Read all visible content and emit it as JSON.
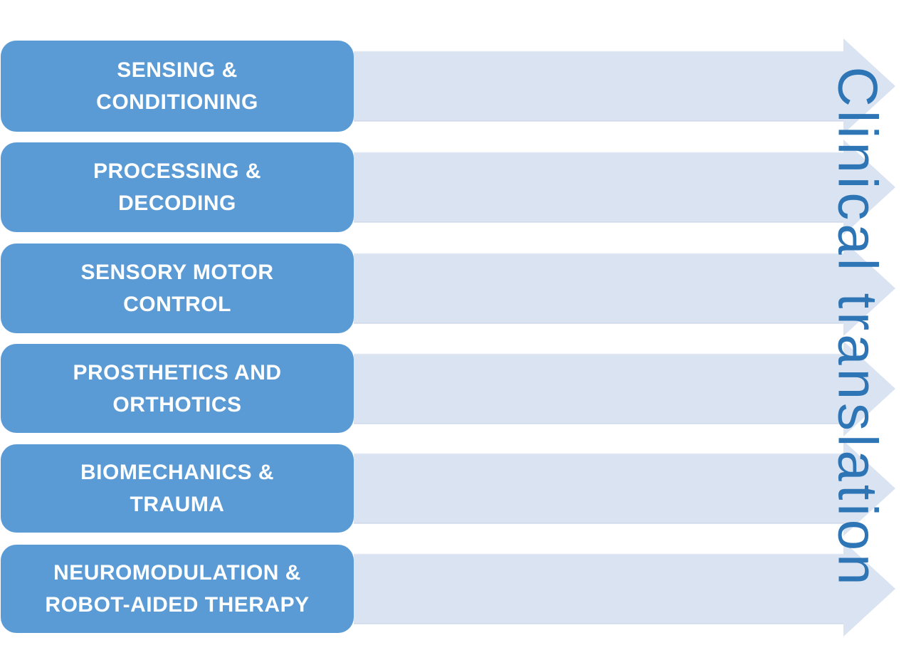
{
  "diagram": {
    "title": "Clinical translation",
    "stages": [
      {
        "label": "SENSING &\nCONDITIONING"
      },
      {
        "label": "PROCESSING &\nDECODING"
      },
      {
        "label": "SENSORY MOTOR\nCONTROL"
      },
      {
        "label": "PROSTHETICS AND\nORTHOTICS"
      },
      {
        "label": "BIOMECHANICS &\nTRAUMA"
      },
      {
        "label": "NEUROMODULATION &\nROBOT-AIDED THERAPY"
      }
    ],
    "colors": {
      "background": "#FFFFFF",
      "stage_box_fill": "#5B9BD5",
      "stage_text": "#FFFFFF",
      "arrow_fill": "#DAE3F1",
      "title_text": "#2E75B6"
    }
  }
}
